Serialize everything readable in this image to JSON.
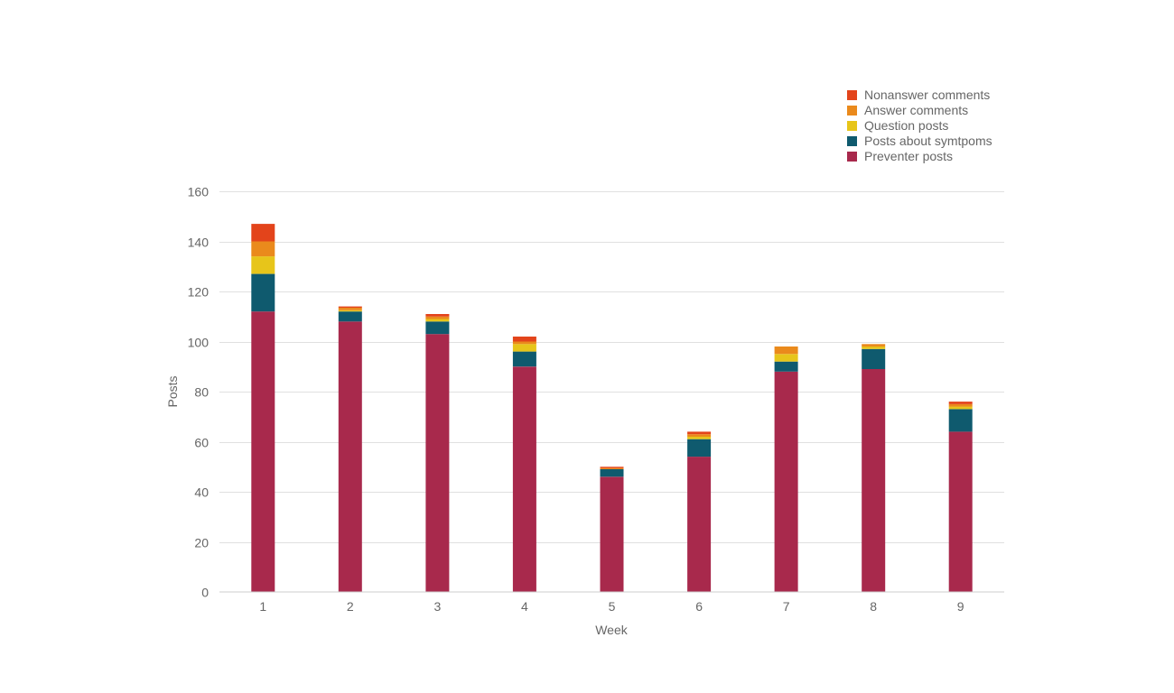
{
  "chart_data": {
    "type": "bar",
    "stacked": true,
    "title": "",
    "xlabel": "Week",
    "ylabel": "Posts",
    "ylim": [
      0,
      160
    ],
    "yticks": [
      0,
      20,
      40,
      60,
      80,
      100,
      120,
      140,
      160
    ],
    "grid": true,
    "legend_position": "top-right",
    "categories": [
      "1",
      "2",
      "3",
      "4",
      "5",
      "6",
      "7",
      "8",
      "9"
    ],
    "series": [
      {
        "name": "Preventer posts",
        "color": "#a8294c",
        "values": [
          112,
          108,
          103,
          90,
          46,
          54,
          88,
          89,
          64
        ]
      },
      {
        "name": "Posts about symtpoms",
        "color": "#0f5a6e",
        "values": [
          15,
          4,
          5,
          6,
          3,
          7,
          4,
          8,
          9
        ]
      },
      {
        "name": "Question posts",
        "color": "#e7c51a",
        "values": [
          7,
          0.5,
          1,
          3,
          0,
          1,
          3,
          1,
          1
        ]
      },
      {
        "name": "Answer comments",
        "color": "#ea8a1c",
        "values": [
          6,
          1,
          1,
          1,
          0.5,
          1,
          3,
          1,
          1
        ]
      },
      {
        "name": "Nonanswer comments",
        "color": "#e3441b",
        "values": [
          7,
          0.5,
          1,
          2,
          0.5,
          1,
          0,
          0,
          1
        ]
      }
    ],
    "legend_order": [
      "Nonanswer comments",
      "Answer comments",
      "Question posts",
      "Posts about symtpoms",
      "Preventer posts"
    ]
  }
}
